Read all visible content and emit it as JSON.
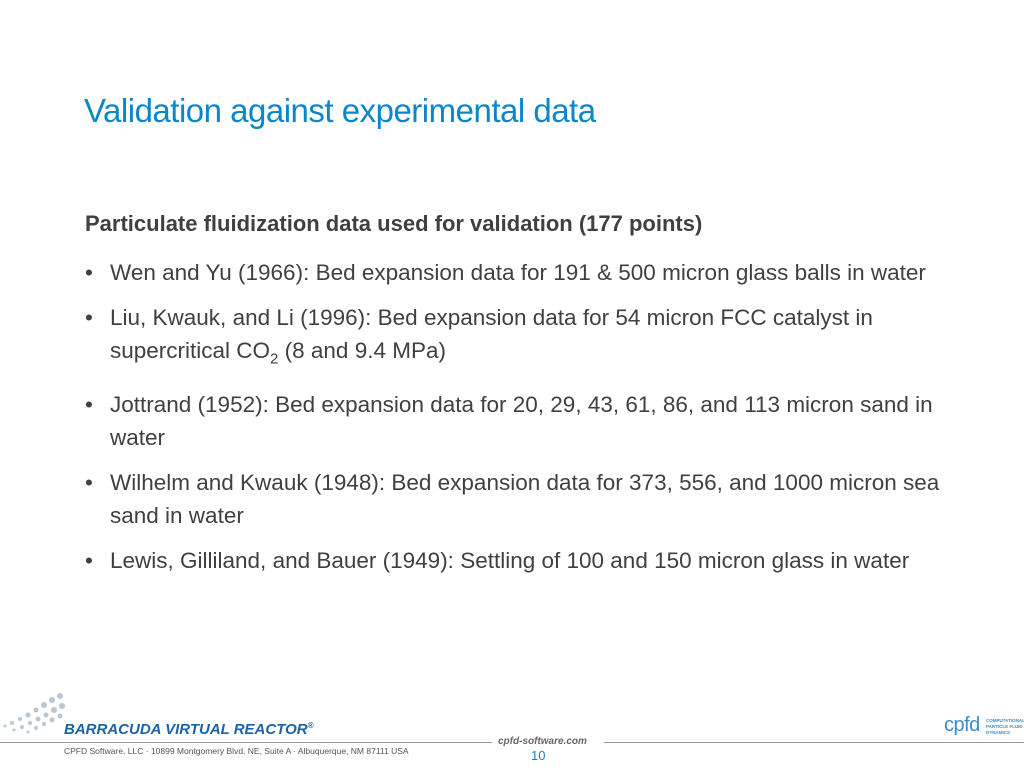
{
  "slide": {
    "title": "Validation against experimental data",
    "heading": "Particulate fluidization data used for validation (177 points)",
    "bullets": [
      "Wen and Yu (1966):  Bed expansion data for 191 & 500 micron glass balls in water",
      {
        "before": "Liu, Kwauk, and Li (1996):  Bed expansion data for 54 micron FCC catalyst in supercritical CO",
        "sub": "2",
        "after": " (8 and 9.4 MPa)"
      },
      "Jottrand (1952):  Bed expansion data for 20, 29, 43, 61, 86, and 113 micron sand in water",
      "Wilhelm and Kwauk (1948):  Bed expansion data for 373, 556, and 1000 micron sea sand in water",
      "Lewis, Gilliland, and Bauer (1949):  Settling of 100 and 150 micron glass in water"
    ]
  },
  "footer": {
    "brand": "BARRACUDA VIRTUAL REACTOR",
    "trademark": "®",
    "address": "CPFD Software, LLC · 10899 Montgomery Blvd. NE, Suite A · Albuquerque, NM 87111 USA",
    "website": "cpfd-software.com",
    "page_number": "10",
    "logo": "cpfd",
    "logo_tagline": "COMPUTATIONAL PARTICLE FLUID DYNAMICS"
  }
}
